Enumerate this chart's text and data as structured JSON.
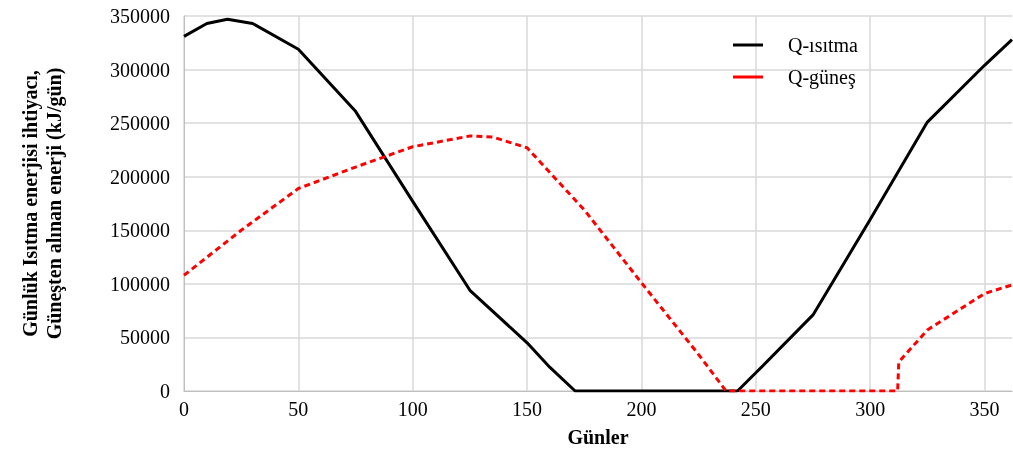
{
  "chart_data": {
    "type": "line",
    "xlabel": "Günler",
    "ylabel": "Günlük Isıtma enerjisi ihtiyacı,\nGüneşten alınan enerji (kJ/gün)",
    "xlim": [
      0,
      362
    ],
    "xticks": [
      0,
      50,
      100,
      150,
      200,
      250,
      300,
      350
    ],
    "ylim": [
      0,
      350000
    ],
    "yticks": [
      0,
      50000,
      100000,
      150000,
      200000,
      250000,
      300000,
      350000
    ],
    "grid": true,
    "legend": "top right",
    "marker": "none",
    "series": [
      {
        "name": "Q-ısıtma",
        "color": "#000000",
        "line_style": "solid",
        "x": [
          0,
          10,
          19,
          30,
          50,
          75,
          100,
          125,
          150,
          160,
          171,
          200,
          242,
          250,
          275,
          300,
          325,
          350,
          362
        ],
        "values": [
          331000,
          343000,
          347000,
          343000,
          319000,
          261000,
          177000,
          94000,
          45000,
          22000,
          0,
          0,
          0,
          17000,
          71000,
          160000,
          251000,
          304000,
          328000
        ]
      },
      {
        "name": "Q-güneş",
        "color": "#ff0000",
        "line_style": "dashed",
        "x": [
          0,
          25,
          50,
          75,
          100,
          125,
          135,
          150,
          175,
          200,
          225,
          237,
          280,
          312,
          312.5,
          325,
          350,
          362
        ],
        "values": [
          108000,
          150000,
          189000,
          209000,
          228000,
          238000,
          237000,
          227000,
          169000,
          101000,
          34000,
          0,
          0,
          0,
          27000,
          57000,
          91000,
          99000
        ]
      }
    ]
  }
}
